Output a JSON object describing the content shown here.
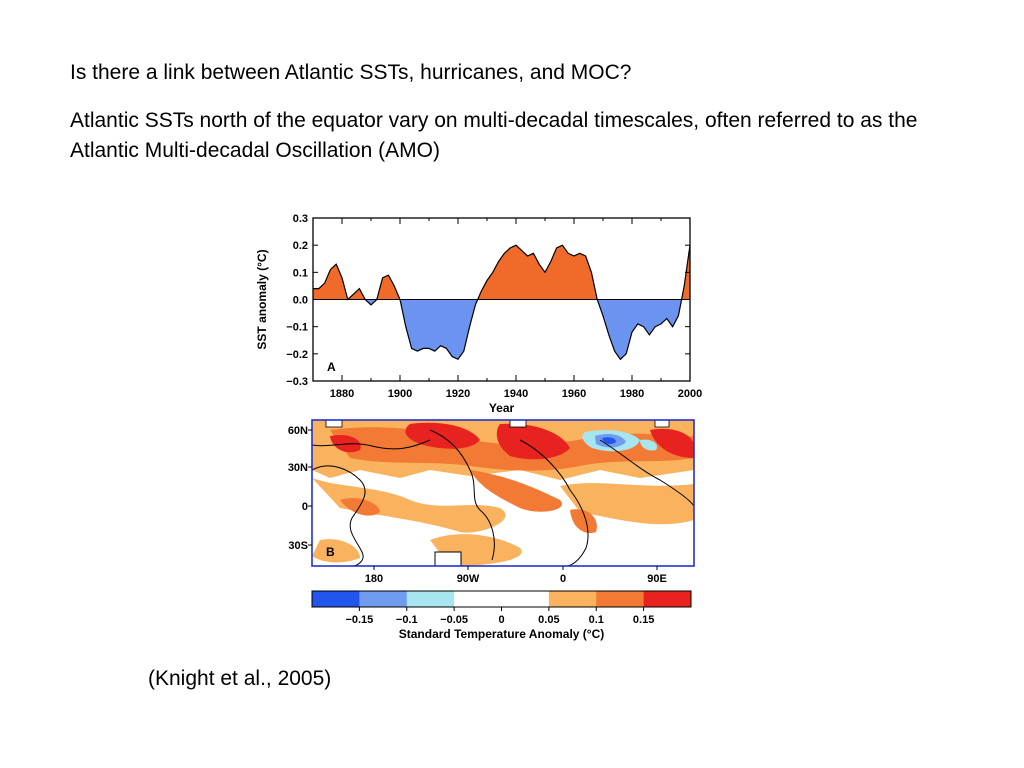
{
  "slide": {
    "question": "Is there a link between Atlantic SSTs, hurricanes, and MOC?",
    "statement": "Atlantic SSTs north of the equator vary on multi-decadal timescales, often referred to as the Atlantic Multi-decadal Oscillation (AMO)",
    "citation": "(Knight et al., 2005)"
  },
  "colors": {
    "positive": "#f06a2a",
    "negative": "#6b93f0",
    "map_frame": "#2233cc"
  },
  "chart_data": [
    {
      "type": "area",
      "panel_label": "A",
      "xlabel": "Year",
      "ylabel": "SST anomaly (°C)",
      "xlim": [
        1870,
        2000
      ],
      "ylim": [
        -0.3,
        0.3
      ],
      "xticks": [
        1880,
        1900,
        1920,
        1940,
        1960,
        1980,
        2000
      ],
      "yticks": [
        "0.3",
        "0.2",
        "0.1",
        "0.0",
        "−0.1",
        "−0.2",
        "−0.3"
      ],
      "ytick_values": [
        0.3,
        0.2,
        0.1,
        0.0,
        -0.1,
        -0.2,
        -0.3
      ],
      "x": [
        1870,
        1872,
        1874,
        1876,
        1878,
        1880,
        1882,
        1884,
        1886,
        1888,
        1890,
        1892,
        1894,
        1896,
        1898,
        1900,
        1902,
        1904,
        1906,
        1908,
        1910,
        1912,
        1914,
        1916,
        1918,
        1920,
        1922,
        1924,
        1926,
        1928,
        1930,
        1932,
        1934,
        1936,
        1938,
        1940,
        1942,
        1944,
        1946,
        1948,
        1950,
        1952,
        1954,
        1956,
        1958,
        1960,
        1962,
        1964,
        1966,
        1968,
        1970,
        1972,
        1974,
        1976,
        1978,
        1980,
        1982,
        1984,
        1986,
        1988,
        1990,
        1992,
        1994,
        1996,
        1998,
        2000
      ],
      "y": [
        0.04,
        0.04,
        0.06,
        0.11,
        0.13,
        0.08,
        0.0,
        0.02,
        0.04,
        0.0,
        -0.02,
        0.0,
        0.08,
        0.09,
        0.05,
        0.0,
        -0.1,
        -0.18,
        -0.19,
        -0.18,
        -0.18,
        -0.19,
        -0.17,
        -0.18,
        -0.21,
        -0.22,
        -0.19,
        -0.1,
        -0.02,
        0.03,
        0.07,
        0.1,
        0.14,
        0.17,
        0.19,
        0.2,
        0.18,
        0.16,
        0.17,
        0.13,
        0.1,
        0.14,
        0.19,
        0.2,
        0.17,
        0.16,
        0.17,
        0.16,
        0.1,
        0.0,
        -0.06,
        -0.13,
        -0.19,
        -0.22,
        -0.2,
        -0.12,
        -0.09,
        -0.1,
        -0.13,
        -0.1,
        -0.09,
        -0.07,
        -0.1,
        -0.06,
        0.05,
        0.2
      ]
    },
    {
      "type": "heatmap",
      "panel_label": "B",
      "xlabel": "Standard Temperature Anomaly (°C)",
      "lon_ticks": [
        "180",
        "90W",
        "0",
        "90E"
      ],
      "lat_ticks": [
        "60N",
        "30N",
        "0",
        "30S"
      ],
      "colorbar": {
        "colors": [
          "#2255ee",
          "#6f9cef",
          "#a8e6ef",
          "#ffffff",
          "#ffffff",
          "#f9b25e",
          "#f27a35",
          "#e8231f"
        ],
        "tick_labels": [
          "−0.15",
          "−0.1",
          "−0.05",
          "0",
          "0.05",
          "0.1",
          "0.15"
        ]
      }
    }
  ]
}
